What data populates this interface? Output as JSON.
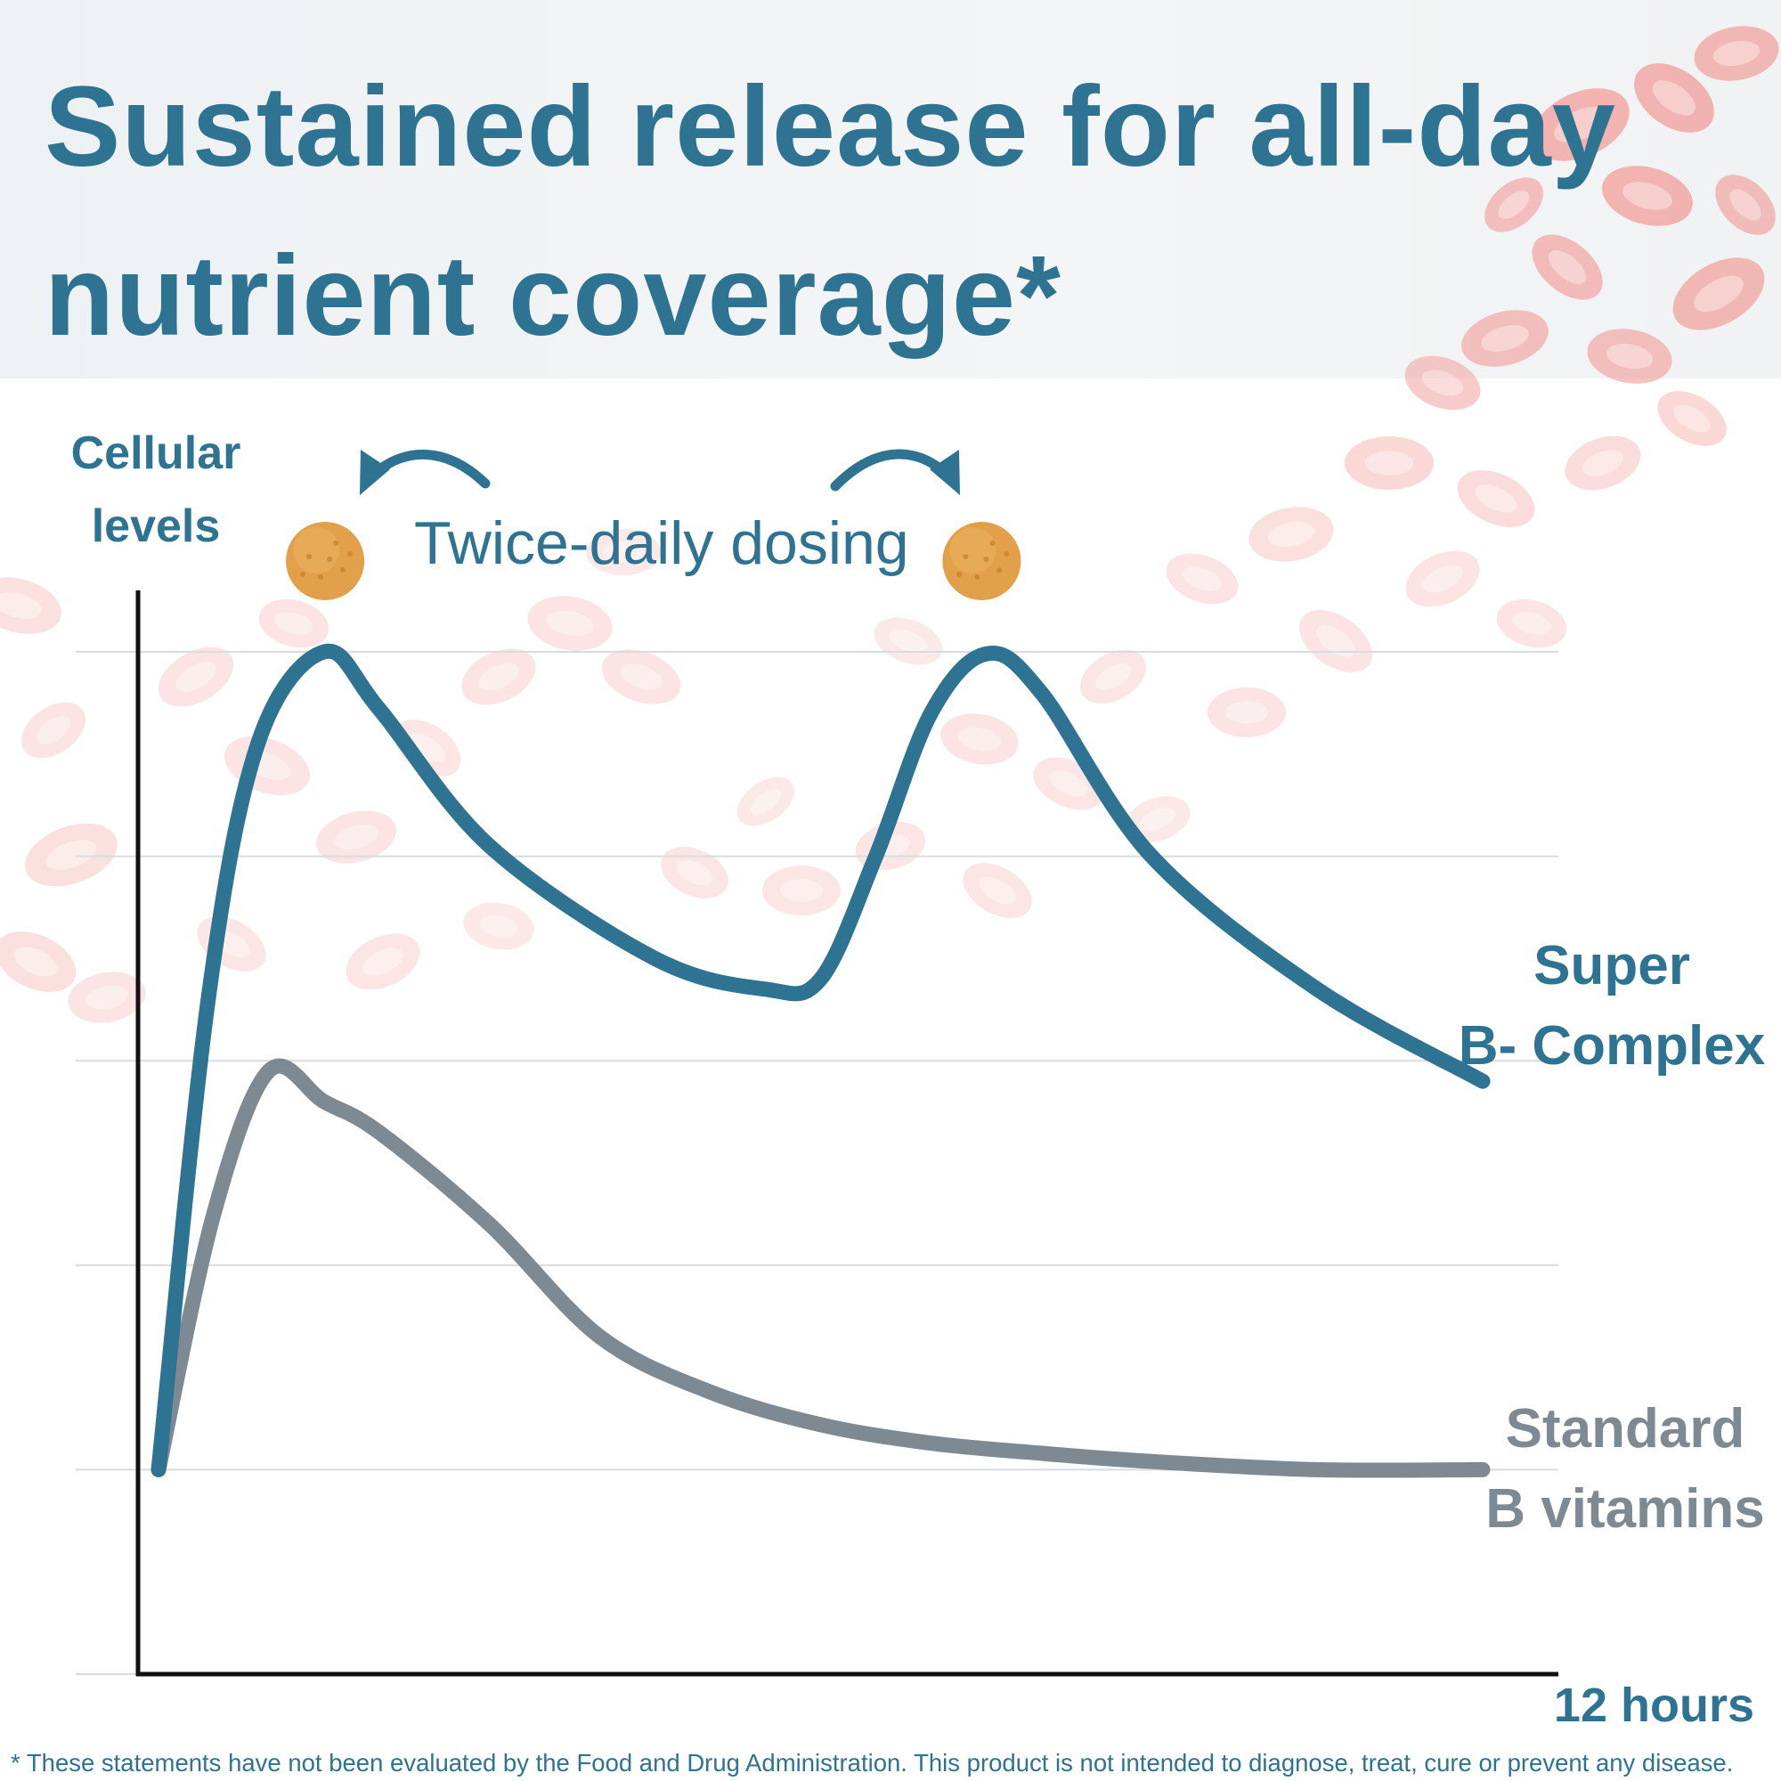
{
  "header": {
    "title_line1": "Sustained release for all-day",
    "title_line2": "nutrient coverage*"
  },
  "annotation": {
    "dosing_label": "Twice-daily dosing",
    "pill_color": "#e3a04a",
    "arrow_color": "#2e7391"
  },
  "footnote": "* These statements have not been evaluated by the Food and Drug Administration. This product is not intended to diagnose, treat, cure or prevent any disease.",
  "colors": {
    "accent": "#2e7391",
    "standard_series": "#7e8a93",
    "decoration_cells": "#f2a9a6"
  },
  "chart_data": {
    "type": "line",
    "title": "Sustained release for all-day nutrient coverage*",
    "xlabel": "12 hours",
    "ylabel_line1": "Cellular",
    "ylabel_line2": "levels",
    "xlim": [
      0,
      12
    ],
    "ylim": [
      0,
      5
    ],
    "grid": true,
    "y_gridlines": [
      1,
      2,
      3,
      4,
      5
    ],
    "dose_times": [
      1.55,
      7.5
    ],
    "series": [
      {
        "name": "Super B- Complex",
        "name_line1": "Super",
        "name_line2": "B- Complex",
        "color": "#2e7391",
        "points": [
          [
            0,
            1.0
          ],
          [
            0.45,
            3.3
          ],
          [
            0.9,
            4.55
          ],
          [
            1.5,
            5.0
          ],
          [
            2.0,
            4.72
          ],
          [
            3.0,
            4.05
          ],
          [
            4.5,
            3.5
          ],
          [
            5.5,
            3.35
          ],
          [
            6.0,
            3.4
          ],
          [
            6.5,
            4.0
          ],
          [
            7.0,
            4.7
          ],
          [
            7.5,
            4.99
          ],
          [
            8.0,
            4.8
          ],
          [
            9.0,
            4.0
          ],
          [
            10.5,
            3.35
          ],
          [
            12.0,
            2.9
          ]
        ]
      },
      {
        "name": "Standard B vitamins",
        "name_line1": "Standard",
        "name_line2": "B vitamins",
        "color": "#7e8a93",
        "points": [
          [
            0,
            1.0
          ],
          [
            0.5,
            2.25
          ],
          [
            1.0,
            2.95
          ],
          [
            1.5,
            2.8
          ],
          [
            2.0,
            2.65
          ],
          [
            3.0,
            2.2
          ],
          [
            4.0,
            1.65
          ],
          [
            5.0,
            1.38
          ],
          [
            6.0,
            1.22
          ],
          [
            7.0,
            1.13
          ],
          [
            8.0,
            1.08
          ],
          [
            9.0,
            1.04
          ],
          [
            10.5,
            1.0
          ],
          [
            12.0,
            1.0
          ]
        ]
      }
    ]
  }
}
